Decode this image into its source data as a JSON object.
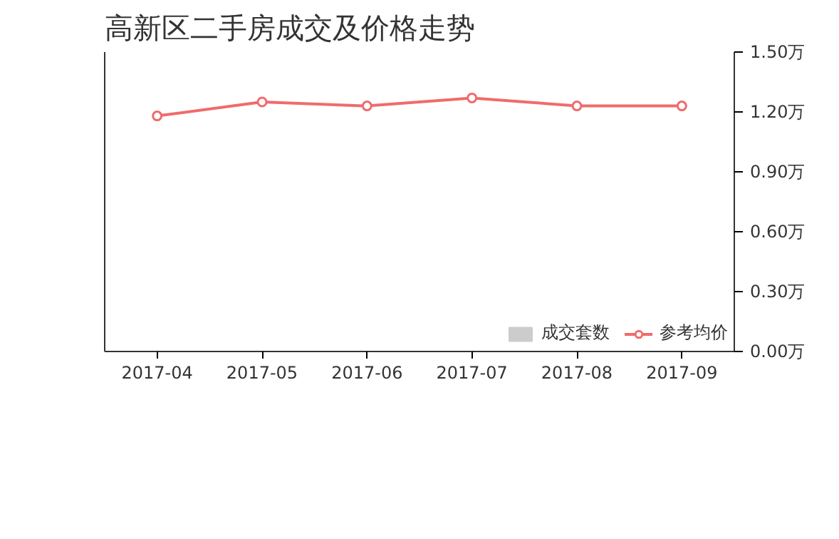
{
  "chart_data": {
    "type": "line",
    "title": "高新区二手房成交及价格走势",
    "categories": [
      "2017-04",
      "2017-05",
      "2017-06",
      "2017-07",
      "2017-08",
      "2017-09"
    ],
    "series": [
      {
        "name": "成交套数",
        "type": "bar",
        "color": "#cccccc",
        "values": [
          null,
          null,
          null,
          null,
          null,
          null
        ]
      },
      {
        "name": "参考均价",
        "axis": "y2",
        "color": "#f06b6b",
        "values": [
          1.18,
          1.25,
          1.23,
          1.27,
          1.23,
          1.23
        ]
      }
    ],
    "y2lim": [
      0,
      1.5
    ],
    "y2ticks": [
      {
        "value": 0,
        "label": "0.00万"
      },
      {
        "value": 0.3,
        "label": "0.30万"
      },
      {
        "value": 0.6,
        "label": "0.60万"
      },
      {
        "value": 0.9,
        "label": "0.90万"
      },
      {
        "value": 1.2,
        "label": "1.20万"
      },
      {
        "value": 1.5,
        "label": "1.50万"
      }
    ],
    "marker": "circle",
    "line_style": "solid",
    "grid": false,
    "legend": "bottom right"
  }
}
